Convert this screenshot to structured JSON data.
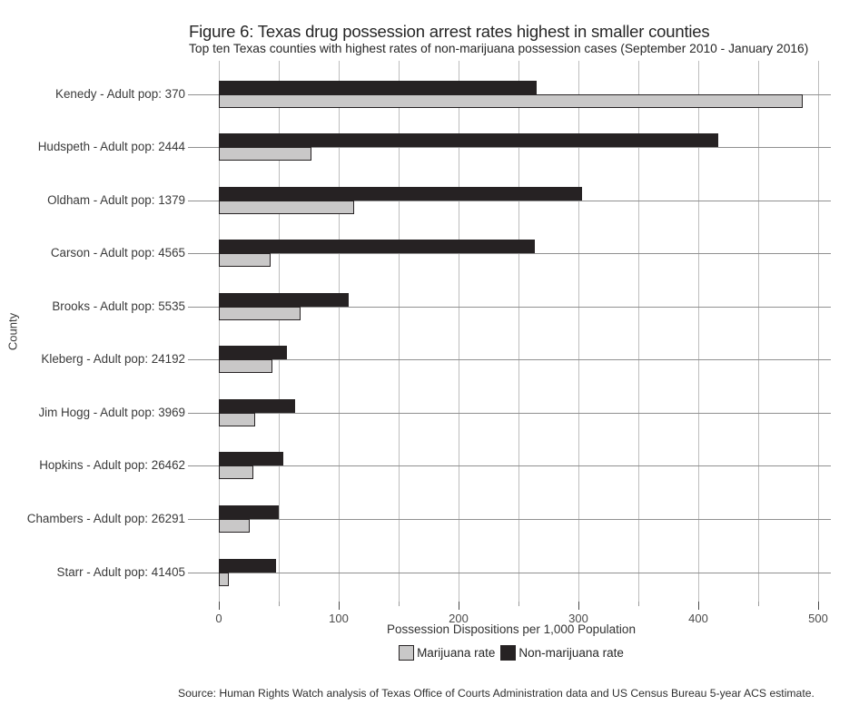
{
  "figure": {
    "source": "Source: Human Rights Watch analysis of Texas Office of Courts Administration data and US Census Bureau 5-year ACS estimate."
  },
  "chart_data": {
    "type": "bar",
    "orientation": "horizontal",
    "title": "Figure 6: Texas drug possession arrest rates highest in smaller counties",
    "subtitle": "Top ten Texas counties with highest rates of non-marijuana possession cases (September 2010 - January 2016)",
    "xlabel": "Possession Dispositions per 1,000 Population",
    "ylabel": "County",
    "xlim": [
      0,
      511
    ],
    "x_major_ticks": [
      0,
      100,
      200,
      300,
      400,
      500
    ],
    "x_minor_ticks": [
      50,
      150,
      250,
      350,
      450
    ],
    "grid": true,
    "legend_position": "bottom",
    "categories": [
      "Kenedy - Adult pop: 370",
      "Hudspeth - Adult pop: 2444",
      "Oldham - Adult pop: 1379",
      "Carson - Adult pop: 4565",
      "Brooks - Adult pop: 5535",
      "Kleberg - Adult pop: 24192",
      "Jim Hogg - Adult pop: 3969",
      "Hopkins - Adult pop: 26462",
      "Chambers - Adult pop: 26291",
      "Starr - Adult pop: 41405"
    ],
    "series": [
      {
        "name": "Marijuana rate",
        "color": "#c9c8c8",
        "values": [
          487,
          77,
          113,
          43,
          68,
          45,
          30,
          29,
          26,
          8
        ]
      },
      {
        "name": "Non-marijuana rate",
        "color": "#262223",
        "values": [
          265,
          417,
          303,
          264,
          108,
          57,
          64,
          54,
          50,
          48
        ]
      }
    ],
    "bar_border_color": "#262223"
  }
}
